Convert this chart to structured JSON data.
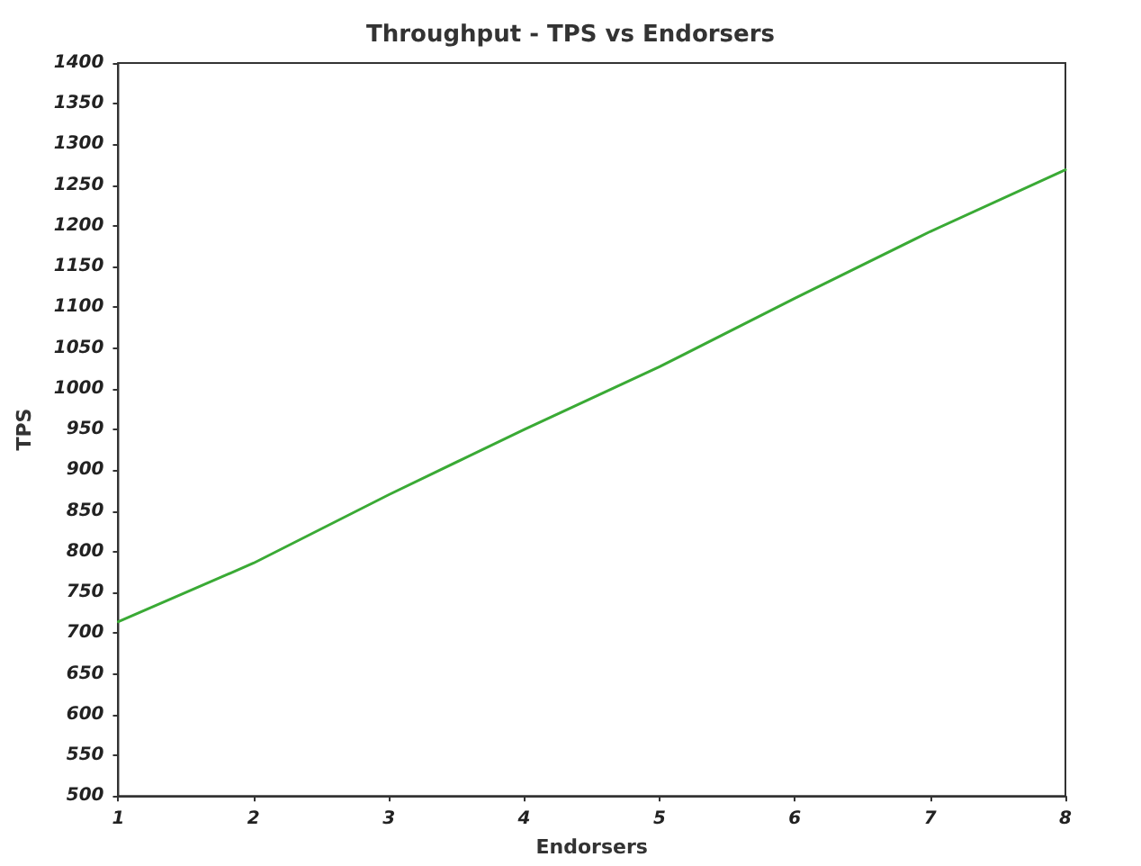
{
  "chart_data": {
    "type": "line",
    "title": "Throughput - TPS vs Endorsers",
    "xlabel": "Endorsers",
    "ylabel": "TPS",
    "x": [
      1,
      2,
      3,
      4,
      5,
      6,
      7,
      8
    ],
    "series": [
      {
        "color": "#3aaa35",
        "values": [
          714,
          786,
          870,
          950,
          1027,
          1111,
          1193,
          1269
        ]
      }
    ],
    "xlim": [
      1,
      8
    ],
    "xticks": [
      1,
      2,
      3,
      4,
      5,
      6,
      7,
      8
    ],
    "ylim": [
      500,
      1400
    ],
    "yticks": [
      500,
      550,
      600,
      650,
      700,
      750,
      800,
      850,
      900,
      950,
      1000,
      1050,
      1100,
      1150,
      1200,
      1250,
      1300,
      1350,
      1400
    ],
    "grid": false,
    "marker": "none",
    "line_style": "solid"
  }
}
